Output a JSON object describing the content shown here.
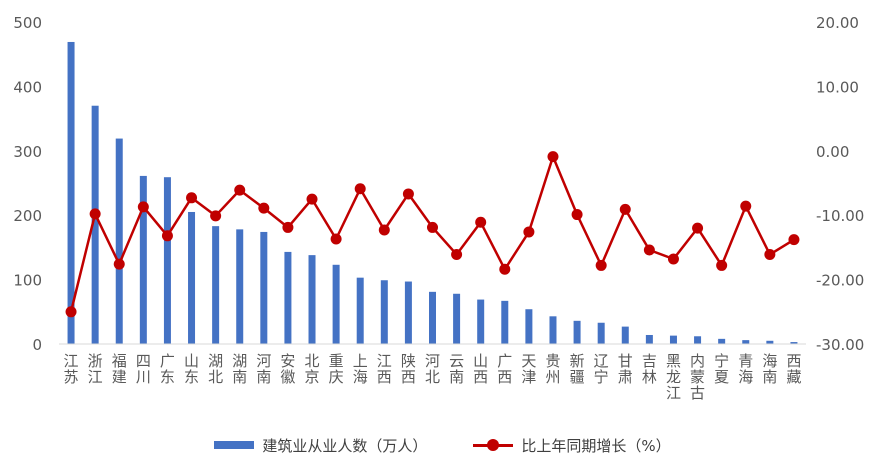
{
  "chart_data": {
    "type": "bar+line",
    "categories": [
      "江苏",
      "浙江",
      "福建",
      "四川",
      "广东",
      "山东",
      "湖北",
      "湖南",
      "河南",
      "安徽",
      "北京",
      "重庆",
      "上海",
      "江西",
      "陕西",
      "河北",
      "云南",
      "山西",
      "广西",
      "天津",
      "贵州",
      "新疆",
      "辽宁",
      "甘肃",
      "吉林",
      "黑龙江",
      "内蒙古",
      "宁夏",
      "青海",
      "海南",
      "西藏"
    ],
    "series": [
      {
        "name": "建筑业从业人数（万人）",
        "type": "bar",
        "axis": "left",
        "color": "#4472C4",
        "values": [
          469,
          370,
          319,
          261,
          259,
          205,
          183,
          178,
          174,
          143,
          138,
          123,
          103,
          99,
          97,
          81,
          78,
          69,
          67,
          54,
          43,
          36,
          33,
          27,
          14,
          13,
          12,
          8,
          6,
          5,
          3
        ]
      },
      {
        "name": "比上年同期增长（%）",
        "type": "line",
        "axis": "right",
        "color": "#C00000",
        "values": [
          -25.0,
          -9.8,
          -17.6,
          -8.7,
          -13.2,
          -7.3,
          -10.1,
          -6.1,
          -8.9,
          -11.9,
          -7.5,
          -13.7,
          -5.9,
          -12.3,
          -6.7,
          -11.9,
          -16.1,
          -11.1,
          -18.4,
          -12.6,
          -0.9,
          -9.9,
          -17.8,
          -9.1,
          -15.4,
          -16.8,
          -12.0,
          -17.8,
          -8.6,
          -16.1,
          -13.8
        ]
      }
    ],
    "y_left": {
      "min": 0,
      "max": 500,
      "step": 100,
      "ticks": [
        "0",
        "100",
        "200",
        "300",
        "400",
        "500"
      ]
    },
    "y_right": {
      "min": -30,
      "max": 20,
      "step": 10,
      "ticks": [
        "-30.00",
        "-20.00",
        "-10.00",
        "0.00",
        "10.00",
        "20.00"
      ]
    },
    "grid": false,
    "legend": "bottom"
  }
}
